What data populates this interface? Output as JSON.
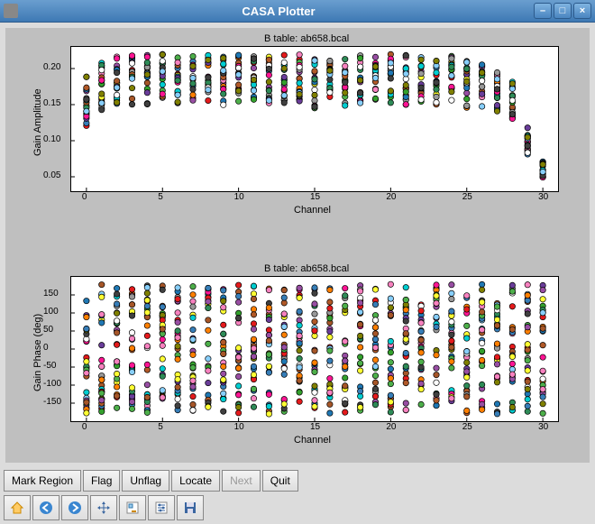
{
  "window": {
    "title": "CASA Plotter",
    "buttons": {
      "minimize": "–",
      "maximize": "□",
      "close": "×"
    }
  },
  "palette": [
    "#e41a1c",
    "#377eb8",
    "#4daf4a",
    "#984ea3",
    "#ff7f00",
    "#ffff33",
    "#a65628",
    "#f781bf",
    "#999999",
    "#1f78b4",
    "#33a02c",
    "#6a3d9a",
    "#b15928",
    "#00ced1",
    "#ff1493",
    "#2e8b57",
    "#ffffff",
    "#404040",
    "#87cefa",
    "#808000"
  ],
  "chart1": {
    "title": "B table: ab658.bcal",
    "xlabel": "Channel",
    "ylabel": "Gain Amplitude",
    "xlim": [
      -1,
      31
    ],
    "ylim": [
      0.03,
      0.23
    ],
    "xticks": [
      0,
      5,
      10,
      15,
      20,
      25,
      30
    ],
    "yticks": [
      0.05,
      0.1,
      0.15,
      0.2
    ],
    "ytick_labels": [
      "0.05",
      "0.10",
      "0.15",
      "0.20"
    ],
    "channels": [
      0,
      1,
      2,
      3,
      4,
      5,
      6,
      7,
      8,
      9,
      10,
      11,
      12,
      13,
      14,
      15,
      16,
      17,
      18,
      19,
      20,
      21,
      22,
      23,
      24,
      25,
      26,
      27,
      28,
      29,
      30
    ],
    "mean": [
      0.155,
      0.175,
      0.185,
      0.185,
      0.185,
      0.185,
      0.185,
      0.185,
      0.185,
      0.18,
      0.185,
      0.185,
      0.185,
      0.185,
      0.185,
      0.18,
      0.185,
      0.18,
      0.185,
      0.185,
      0.185,
      0.185,
      0.185,
      0.185,
      0.185,
      0.18,
      0.175,
      0.165,
      0.155,
      0.1,
      0.06
    ],
    "spread": [
      0.035,
      0.035,
      0.035,
      0.035,
      0.035,
      0.035,
      0.033,
      0.033,
      0.035,
      0.037,
      0.035,
      0.035,
      0.033,
      0.035,
      0.035,
      0.037,
      0.035,
      0.037,
      0.033,
      0.035,
      0.035,
      0.035,
      0.035,
      0.035,
      0.033,
      0.035,
      0.033,
      0.03,
      0.028,
      0.02,
      0.012
    ],
    "n_series": 20
  },
  "chart2": {
    "title": "B table: ab658.bcal",
    "xlabel": "Channel",
    "ylabel": "Gain Phase (deg)",
    "xlim": [
      -1,
      31
    ],
    "ylim": [
      -200,
      200
    ],
    "xticks": [
      0,
      5,
      10,
      15,
      20,
      25,
      30
    ],
    "yticks": [
      -150,
      -100,
      -50,
      0,
      50,
      100,
      150
    ],
    "channels": [
      0,
      1,
      2,
      3,
      4,
      5,
      6,
      7,
      8,
      9,
      10,
      11,
      12,
      13,
      14,
      15,
      16,
      17,
      18,
      19,
      20,
      21,
      22,
      23,
      24,
      25,
      26,
      27,
      28,
      29,
      30
    ],
    "n_series": 28
  },
  "buttons": {
    "mark_region": "Mark Region",
    "flag": "Flag",
    "unflag": "Unflag",
    "locate": "Locate",
    "next": "Next",
    "quit": "Quit"
  },
  "toolbar_icons": [
    "home",
    "back",
    "forward",
    "pan",
    "zoom",
    "config",
    "save"
  ]
}
